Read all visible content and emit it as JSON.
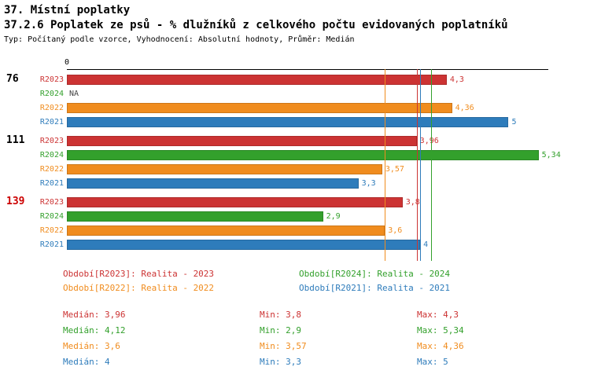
{
  "header": {
    "title": "37. Místní poplatky",
    "subtitle": "37.2.6 Poplatek ze psů - % dlužníků z celkového počtu evidovaných poplatníků",
    "meta": "Typ: Počítaný podle vzorce, Vyhodnocení: Absolutní hodnoty, Průměr: Medián"
  },
  "chart_data": {
    "type": "bar",
    "orientation": "horizontal",
    "title": "37.2.6 Poplatek ze psů - % dlužníků z celkového počtu evidovaných poplatníků",
    "axis_origin_label": "0",
    "xlim": [
      0,
      5.45
    ],
    "grid": false,
    "na_color": "#444444",
    "series_colors": {
      "R2023": "#cc3333",
      "R2024": "#33a02c",
      "R2022": "#f08c1e",
      "R2021": "#2e7cbb"
    },
    "groups": [
      {
        "label": "76",
        "label_color": "#000000",
        "bars": [
          {
            "series": "R2023",
            "value": 4.3,
            "display": "4,3"
          },
          {
            "series": "R2024",
            "value": null,
            "display": "NA"
          },
          {
            "series": "R2022",
            "value": 4.36,
            "display": "4,36"
          },
          {
            "series": "R2021",
            "value": 5,
            "display": "5"
          }
        ]
      },
      {
        "label": "111",
        "label_color": "#000000",
        "bars": [
          {
            "series": "R2023",
            "value": 3.96,
            "display": "3,96"
          },
          {
            "series": "R2024",
            "value": 5.34,
            "display": "5,34"
          },
          {
            "series": "R2022",
            "value": 3.57,
            "display": "3,57"
          },
          {
            "series": "R2021",
            "value": 3.3,
            "display": "3,3"
          }
        ]
      },
      {
        "label": "139",
        "label_color": "#cc0000",
        "bars": [
          {
            "series": "R2023",
            "value": 3.8,
            "display": "3,8"
          },
          {
            "series": "R2024",
            "value": 2.9,
            "display": "2,9"
          },
          {
            "series": "R2022",
            "value": 3.6,
            "display": "3,6"
          },
          {
            "series": "R2021",
            "value": 4,
            "display": "4"
          }
        ]
      }
    ],
    "median_lines": [
      {
        "series": "R2022",
        "value": 3.6,
        "color": "#f08c1e"
      },
      {
        "series": "R2023",
        "value": 3.96,
        "color": "#cc3333"
      },
      {
        "series": "R2021",
        "value": 4,
        "color": "#2e7cbb"
      },
      {
        "series": "R2024",
        "value": 4.12,
        "color": "#33a02c"
      }
    ]
  },
  "legend": [
    {
      "label": "Období[R2023]: Realita - 2023",
      "color": "#cc3333"
    },
    {
      "label": "Období[R2024]: Realita - 2024",
      "color": "#33a02c"
    },
    {
      "label": "Období[R2022]: Realita - 2022",
      "color": "#f08c1e"
    },
    {
      "label": "Období[R2021]: Realita - 2021",
      "color": "#2e7cbb"
    }
  ],
  "stats": [
    {
      "color": "#cc3333",
      "median": "Medián: 3,96",
      "min": "Min: 3,8",
      "max": "Max: 4,3"
    },
    {
      "color": "#33a02c",
      "median": "Medián: 4,12",
      "min": "Min: 2,9",
      "max": "Max: 5,34"
    },
    {
      "color": "#f08c1e",
      "median": "Medián: 3,6",
      "min": "Min: 3,57",
      "max": "Max: 4,36"
    },
    {
      "color": "#2e7cbb",
      "median": "Medián: 4",
      "min": "Min: 3,3",
      "max": "Max: 5"
    }
  ]
}
